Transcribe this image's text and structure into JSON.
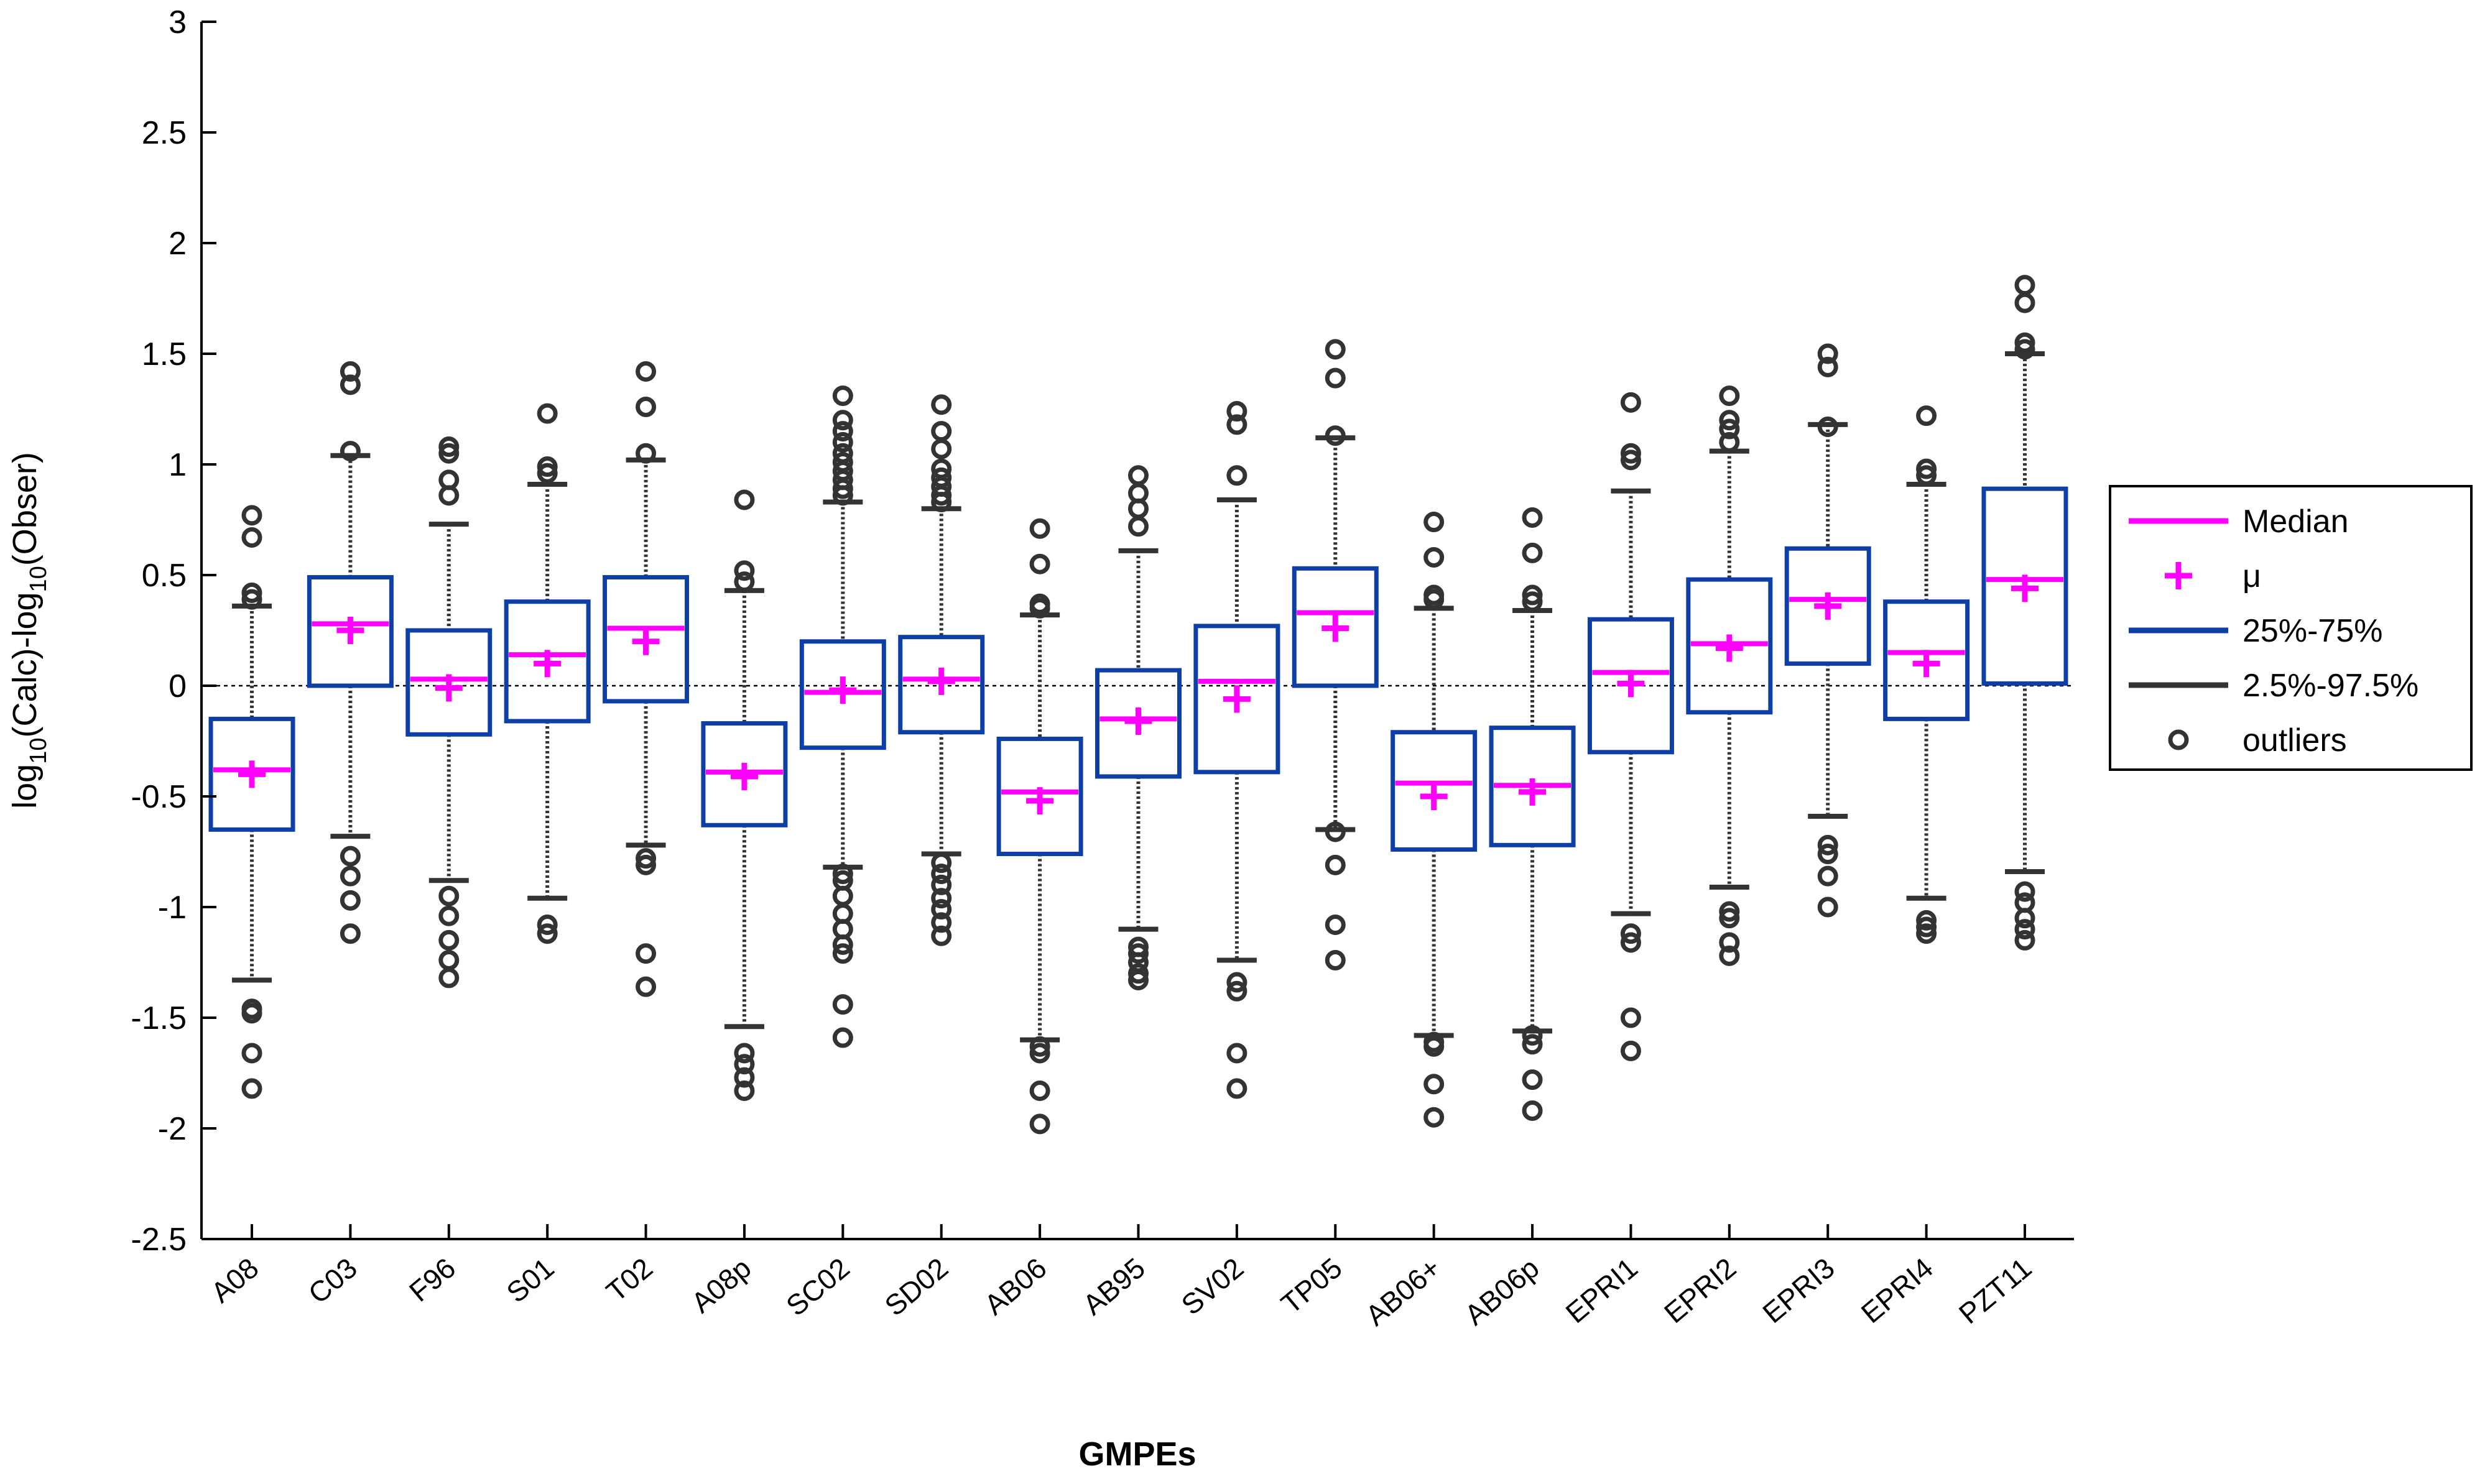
{
  "chart_data": {
    "type": "boxplot",
    "xlabel": "GMPEs",
    "ylabel_parts": {
      "a": "log",
      "b": "10",
      "c": "(Calc)-log",
      "d": "10",
      "e": "(Obser)"
    },
    "ylim": [
      -2.5,
      3
    ],
    "yticks": [
      3,
      2.5,
      2,
      1.5,
      1,
      0.5,
      0,
      -0.5,
      -1,
      -1.5,
      -2,
      -2.5
    ],
    "ytick_labels": [
      "3",
      "2.5",
      "2",
      "1.5",
      "1",
      "0.5",
      "0",
      "-0.5",
      "-1",
      "-1.5",
      "-2",
      "-2.5"
    ],
    "zero_line": true,
    "colors": {
      "median": "#ff00ff",
      "mean": "#ff00ff",
      "box": "#0d3fa6",
      "whisker": "#333333",
      "outlier": "#333333",
      "axis": "#000000"
    },
    "legend": {
      "placement": "right",
      "entries": [
        {
          "label": "Median",
          "symbol": "line",
          "color": "#ff00ff"
        },
        {
          "label": "μ",
          "symbol": "plus",
          "color": "#ff00ff"
        },
        {
          "label": "25%-75%",
          "symbol": "line",
          "color": "#0d3fa6"
        },
        {
          "label": "2.5%-97.5%",
          "symbol": "line",
          "color": "#333333"
        },
        {
          "label": "outliers",
          "symbol": "circle",
          "color": "#333333"
        }
      ]
    },
    "categories": [
      "A08",
      "C03",
      "F96",
      "S01",
      "T02",
      "A08p",
      "SC02",
      "SD02",
      "AB06",
      "AB95",
      "SV02",
      "TP05",
      "AB06+",
      "AB06p",
      "EPRI1",
      "EPRI2",
      "EPRI3",
      "EPRI4",
      "PZT11"
    ],
    "series": [
      {
        "name": "A08",
        "q1": -0.65,
        "q3": -0.15,
        "median": -0.38,
        "mean": -0.4,
        "whisker_low": -1.33,
        "whisker_high": 0.36,
        "outliers": [
          0.77,
          0.67,
          0.42,
          0.39,
          -1.46,
          -1.48,
          -1.66,
          -1.82
        ]
      },
      {
        "name": "C03",
        "q1": 0.0,
        "q3": 0.49,
        "median": 0.28,
        "mean": 0.25,
        "whisker_low": -0.68,
        "whisker_high": 1.04,
        "outliers": [
          1.42,
          1.36,
          1.06,
          -0.77,
          -0.86,
          -0.97,
          -1.12
        ]
      },
      {
        "name": "F96",
        "q1": -0.22,
        "q3": 0.25,
        "median": 0.03,
        "mean": -0.01,
        "whisker_low": -0.88,
        "whisker_high": 0.73,
        "outliers": [
          1.08,
          1.05,
          0.93,
          0.86,
          -0.95,
          -1.04,
          -1.15,
          -1.24,
          -1.32
        ]
      },
      {
        "name": "S01",
        "q1": -0.16,
        "q3": 0.38,
        "median": 0.14,
        "mean": 0.1,
        "whisker_low": -0.96,
        "whisker_high": 0.91,
        "outliers": [
          1.23,
          0.99,
          0.96,
          -1.08,
          -1.12
        ]
      },
      {
        "name": "T02",
        "q1": -0.07,
        "q3": 0.49,
        "median": 0.26,
        "mean": 0.2,
        "whisker_low": -0.72,
        "whisker_high": 1.02,
        "outliers": [
          1.42,
          1.26,
          1.05,
          -0.78,
          -0.81,
          -1.21,
          -1.36
        ]
      },
      {
        "name": "A08p",
        "q1": -0.63,
        "q3": -0.17,
        "median": -0.39,
        "mean": -0.41,
        "whisker_low": -1.54,
        "whisker_high": 0.43,
        "outliers": [
          0.84,
          0.52,
          0.47,
          -1.66,
          -1.71,
          -1.77,
          -1.83
        ]
      },
      {
        "name": "SC02",
        "q1": -0.28,
        "q3": 0.2,
        "median": -0.03,
        "mean": -0.02,
        "whisker_low": -0.82,
        "whisker_high": 0.83,
        "outliers": [
          1.31,
          1.2,
          1.15,
          1.1,
          1.05,
          1.01,
          0.97,
          0.93,
          0.89,
          0.86,
          -0.85,
          -0.88,
          -0.95,
          -1.03,
          -1.1,
          -1.17,
          -1.21,
          -1.44,
          -1.59
        ]
      },
      {
        "name": "SD02",
        "q1": -0.21,
        "q3": 0.22,
        "median": 0.03,
        "mean": 0.02,
        "whisker_low": -0.76,
        "whisker_high": 0.8,
        "outliers": [
          1.27,
          1.15,
          1.07,
          0.98,
          0.94,
          0.9,
          0.86,
          0.83,
          -0.8,
          -0.85,
          -0.9,
          -0.96,
          -1.01,
          -1.07,
          -1.13
        ]
      },
      {
        "name": "AB06",
        "q1": -0.76,
        "q3": -0.24,
        "median": -0.48,
        "mean": -0.52,
        "whisker_low": -1.6,
        "whisker_high": 0.32,
        "outliers": [
          0.71,
          0.55,
          0.37,
          0.35,
          -1.63,
          -1.66,
          -1.83,
          -1.98
        ]
      },
      {
        "name": "AB95",
        "q1": -0.41,
        "q3": 0.07,
        "median": -0.15,
        "mean": -0.16,
        "whisker_low": -1.1,
        "whisker_high": 0.61,
        "outliers": [
          0.95,
          0.87,
          0.8,
          0.72,
          -1.18,
          -1.21,
          -1.25,
          -1.3,
          -1.33
        ]
      },
      {
        "name": "SV02",
        "q1": -0.39,
        "q3": 0.27,
        "median": 0.02,
        "mean": -0.06,
        "whisker_low": -1.24,
        "whisker_high": 0.84,
        "outliers": [
          1.24,
          1.18,
          0.95,
          -1.34,
          -1.38,
          -1.66,
          -1.82
        ]
      },
      {
        "name": "TP05",
        "q1": 0.0,
        "q3": 0.53,
        "median": 0.33,
        "mean": 0.26,
        "whisker_low": -0.65,
        "whisker_high": 1.12,
        "outliers": [
          1.52,
          1.39,
          1.13,
          -0.66,
          -0.81,
          -1.08,
          -1.24
        ]
      },
      {
        "name": "AB06+",
        "q1": -0.74,
        "q3": -0.21,
        "median": -0.44,
        "mean": -0.5,
        "whisker_low": -1.58,
        "whisker_high": 0.35,
        "outliers": [
          0.74,
          0.58,
          0.41,
          0.39,
          -1.61,
          -1.63,
          -1.8,
          -1.95
        ]
      },
      {
        "name": "AB06p",
        "q1": -0.72,
        "q3": -0.19,
        "median": -0.45,
        "mean": -0.48,
        "whisker_low": -1.56,
        "whisker_high": 0.34,
        "outliers": [
          0.76,
          0.6,
          0.41,
          0.38,
          -1.58,
          -1.62,
          -1.78,
          -1.92
        ]
      },
      {
        "name": "EPRI1",
        "q1": -0.3,
        "q3": 0.3,
        "median": 0.06,
        "mean": 0.01,
        "whisker_low": -1.03,
        "whisker_high": 0.88,
        "outliers": [
          1.28,
          1.05,
          1.02,
          -1.12,
          -1.16,
          -1.5,
          -1.65
        ]
      },
      {
        "name": "EPRI2",
        "q1": -0.12,
        "q3": 0.48,
        "median": 0.19,
        "mean": 0.17,
        "whisker_low": -0.91,
        "whisker_high": 1.06,
        "outliers": [
          1.31,
          1.2,
          1.16,
          1.1,
          -1.02,
          -1.05,
          -1.16,
          -1.22
        ]
      },
      {
        "name": "EPRI3",
        "q1": 0.1,
        "q3": 0.62,
        "median": 0.39,
        "mean": 0.36,
        "whisker_low": -0.59,
        "whisker_high": 1.18,
        "outliers": [
          1.5,
          1.44,
          1.17,
          -0.72,
          -0.76,
          -0.86,
          -1.0
        ]
      },
      {
        "name": "EPRI4",
        "q1": -0.15,
        "q3": 0.38,
        "median": 0.15,
        "mean": 0.1,
        "whisker_low": -0.96,
        "whisker_high": 0.91,
        "outliers": [
          1.22,
          0.98,
          0.95,
          -1.06,
          -1.09,
          -1.12
        ]
      },
      {
        "name": "PZT11",
        "q1": 0.01,
        "q3": 0.89,
        "median": 0.48,
        "mean": 0.44,
        "whisker_low": -0.84,
        "whisker_high": 1.5,
        "outliers": [
          1.81,
          1.73,
          1.55,
          1.52,
          -0.93,
          -0.98,
          -1.05,
          -1.1,
          -1.15
        ]
      }
    ]
  }
}
